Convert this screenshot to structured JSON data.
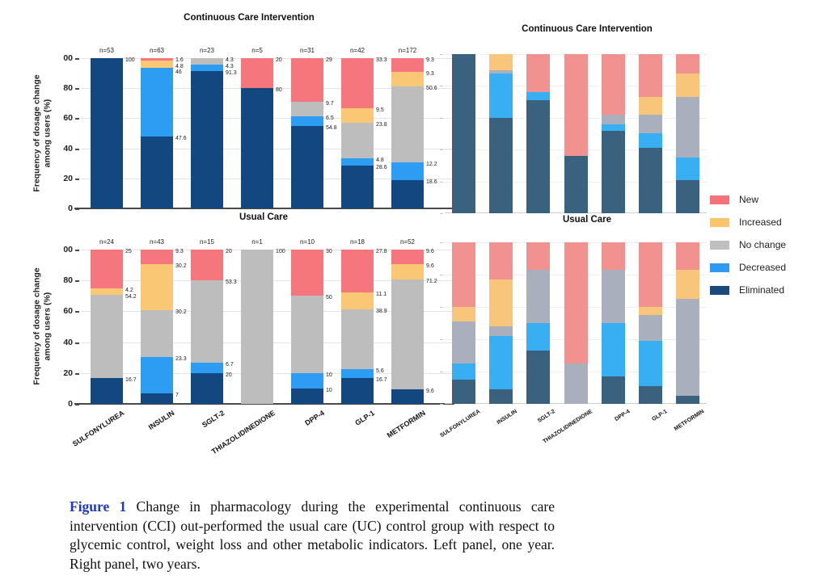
{
  "caption": {
    "label": "Figure 1",
    "text": " Change in pharmacology during the experimental continuous care intervention (CCI) out-performed the usual care (UC) control group with respect to glycemic control, weight loss and other metabolic indicators. Left panel, one year. Right panel, two years."
  },
  "legend": {
    "items": [
      {
        "key": "new",
        "label": "New",
        "color": "#F4737A"
      },
      {
        "key": "increased",
        "label": "Increased",
        "color": "#FAC46D"
      },
      {
        "key": "no_change",
        "label": "No change",
        "color": "#BFBFBF"
      },
      {
        "key": "decreased",
        "label": "Decreased",
        "color": "#2E9BF0"
      },
      {
        "key": "eliminated",
        "label": "Eliminated",
        "color": "#1C4A7E"
      }
    ]
  },
  "colors": {
    "left": {
      "new": "#F5767C",
      "increased": "#FAC775",
      "no_change": "#BDBDBE",
      "decreased": "#2D9CF3",
      "eliminated": "#12477F"
    },
    "right": {
      "new": "#F19190",
      "increased": "#F8C57B",
      "no_change": "#A9AFBC",
      "decreased": "#38AFF3",
      "eliminated": "#3A627E"
    }
  },
  "chart_data": {
    "type": "bar",
    "stacked": true,
    "unit": "percent",
    "ylabel": "Frequency of dosage change among users (%)",
    "yticks": {
      "labels": [
        "00",
        "80",
        "60",
        "40",
        "20",
        "0"
      ],
      "values": [
        100,
        80,
        60,
        40,
        20,
        0
      ]
    },
    "categories": [
      "SULFONYLUREA",
      "INSULIN",
      "SGLT-2",
      "THIAZOLIDINEDIONE",
      "DPP-4",
      "GLP-1",
      "METFORMIN"
    ],
    "segment_order_top_to_bottom": [
      "new",
      "increased",
      "no_change",
      "decreased",
      "eliminated"
    ],
    "panels": [
      {
        "id": "cci1",
        "title": "Continuous Care Intervention",
        "timepoint": "one year",
        "bars": [
          {
            "category": "SULFONYLUREA",
            "n": "n=53",
            "segments": [
              {
                "key": "eliminated",
                "value": 100,
                "label": "100"
              }
            ]
          },
          {
            "category": "INSULIN",
            "n": "n=63",
            "segments": [
              {
                "key": "new",
                "value": 1.6,
                "label": "1.6"
              },
              {
                "key": "increased",
                "value": 4.8,
                "label": "4.8"
              },
              {
                "key": "decreased",
                "value": 46,
                "label": "46"
              },
              {
                "key": "eliminated",
                "value": 47.6,
                "label": "47.6"
              }
            ]
          },
          {
            "category": "SGLT-2",
            "n": "n=23",
            "segments": [
              {
                "key": "no_change",
                "value": 4.3,
                "label": "4.3"
              },
              {
                "key": "decreased",
                "value": 4.3,
                "label": "4.3"
              },
              {
                "key": "eliminated",
                "value": 91.3,
                "label": "91.3"
              }
            ]
          },
          {
            "category": "THIAZOLIDINEDIONE",
            "n": "n=5",
            "segments": [
              {
                "key": "new",
                "value": 20,
                "label": "20"
              },
              {
                "key": "eliminated",
                "value": 80,
                "label": "80"
              }
            ]
          },
          {
            "category": "DPP-4",
            "n": "n=31",
            "segments": [
              {
                "key": "new",
                "value": 29,
                "label": "29"
              },
              {
                "key": "no_change",
                "value": 9.7,
                "label": "9.7"
              },
              {
                "key": "decreased",
                "value": 6.5,
                "label": "6.5"
              },
              {
                "key": "eliminated",
                "value": 54.8,
                "label": "54.8"
              }
            ]
          },
          {
            "category": "GLP-1",
            "n": "n=42",
            "segments": [
              {
                "key": "new",
                "value": 33.3,
                "label": "33.3"
              },
              {
                "key": "increased",
                "value": 9.5,
                "label": "9.5"
              },
              {
                "key": "no_change",
                "value": 23.8,
                "label": "23.8"
              },
              {
                "key": "decreased",
                "value": 4.8,
                "label": "4.8"
              },
              {
                "key": "eliminated",
                "value": 28.6,
                "label": "28.6"
              }
            ]
          },
          {
            "category": "METFORMIN",
            "n": "n=172",
            "segments": [
              {
                "key": "new",
                "value": 9.3,
                "label": "9.3"
              },
              {
                "key": "increased",
                "value": 9.3,
                "label": "9.3"
              },
              {
                "key": "no_change",
                "value": 50.6,
                "label": "50.6"
              },
              {
                "key": "decreased",
                "value": 12.2,
                "label": "12.2"
              },
              {
                "key": "eliminated",
                "value": 18.6,
                "label": "18.6"
              }
            ]
          }
        ]
      },
      {
        "id": "uc1",
        "title": "Usual Care",
        "timepoint": "one year",
        "bars": [
          {
            "category": "SULFONYLUREA",
            "n": "n=24",
            "segments": [
              {
                "key": "new",
                "value": 25,
                "label": "25"
              },
              {
                "key": "increased",
                "value": 4.2,
                "label": "4.2"
              },
              {
                "key": "no_change",
                "value": 54.2,
                "label": "54.2"
              },
              {
                "key": "eliminated",
                "value": 16.7,
                "label": "16.7"
              }
            ]
          },
          {
            "category": "INSULIN",
            "n": "n=43",
            "segments": [
              {
                "key": "new",
                "value": 9.3,
                "label": "9.3"
              },
              {
                "key": "increased",
                "value": 30.2,
                "label": "30.2"
              },
              {
                "key": "no_change",
                "value": 30.2,
                "label": "30.2"
              },
              {
                "key": "decreased",
                "value": 23.3,
                "label": "23.3"
              },
              {
                "key": "eliminated",
                "value": 7,
                "label": "7"
              }
            ]
          },
          {
            "category": "SGLT-2",
            "n": "n=15",
            "segments": [
              {
                "key": "new",
                "value": 20,
                "label": "20"
              },
              {
                "key": "no_change",
                "value": 53.3,
                "label": "53.3"
              },
              {
                "key": "decreased",
                "value": 6.7,
                "label": "6.7"
              },
              {
                "key": "eliminated",
                "value": 20,
                "label": "20"
              }
            ]
          },
          {
            "category": "THIAZOLIDINEDIONE",
            "n": "n=1",
            "segments": [
              {
                "key": "no_change",
                "value": 100,
                "label": "100"
              }
            ]
          },
          {
            "category": "DPP-4",
            "n": "n=10",
            "segments": [
              {
                "key": "new",
                "value": 30,
                "label": "30"
              },
              {
                "key": "no_change",
                "value": 50,
                "label": "50"
              },
              {
                "key": "decreased",
                "value": 10,
                "label": "10"
              },
              {
                "key": "eliminated",
                "value": 10,
                "label": "10"
              }
            ]
          },
          {
            "category": "GLP-1",
            "n": "n=18",
            "segments": [
              {
                "key": "new",
                "value": 27.8,
                "label": "27.8"
              },
              {
                "key": "increased",
                "value": 11.1,
                "label": "11.1"
              },
              {
                "key": "no_change",
                "value": 38.9,
                "label": "38.9"
              },
              {
                "key": "decreased",
                "value": 5.6,
                "label": "5.6"
              },
              {
                "key": "eliminated",
                "value": 16.7,
                "label": "16.7"
              }
            ]
          },
          {
            "category": "METFORMIN",
            "n": "n=52",
            "segments": [
              {
                "key": "new",
                "value": 9.6,
                "label": "9.6"
              },
              {
                "key": "increased",
                "value": 9.6,
                "label": "9.6"
              },
              {
                "key": "no_change",
                "value": 71.2,
                "label": "71.2"
              },
              {
                "key": "eliminated",
                "value": 9.6,
                "label": "9.6"
              }
            ]
          }
        ]
      },
      {
        "id": "cci2",
        "title": "Continuous Care Intervention",
        "timepoint": "two years",
        "values_estimated": true,
        "bars": [
          {
            "category": "SULFONYLUREA",
            "segments": [
              {
                "key": "eliminated",
                "value": 100
              }
            ]
          },
          {
            "category": "INSULIN",
            "segments": [
              {
                "key": "increased",
                "value": 10
              },
              {
                "key": "no_change",
                "value": 2
              },
              {
                "key": "decreased",
                "value": 28
              },
              {
                "key": "eliminated",
                "value": 60
              }
            ]
          },
          {
            "category": "SGLT-2",
            "segments": [
              {
                "key": "new",
                "value": 24
              },
              {
                "key": "decreased",
                "value": 5
              },
              {
                "key": "eliminated",
                "value": 71
              }
            ]
          },
          {
            "category": "THIAZOLIDINEDIONE",
            "segments": [
              {
                "key": "new",
                "value": 64
              },
              {
                "key": "eliminated",
                "value": 36
              }
            ]
          },
          {
            "category": "DPP-4",
            "segments": [
              {
                "key": "new",
                "value": 38
              },
              {
                "key": "no_change",
                "value": 6
              },
              {
                "key": "decreased",
                "value": 4
              },
              {
                "key": "eliminated",
                "value": 52
              }
            ]
          },
          {
            "category": "GLP-1",
            "segments": [
              {
                "key": "new",
                "value": 27
              },
              {
                "key": "increased",
                "value": 11
              },
              {
                "key": "no_change",
                "value": 12
              },
              {
                "key": "decreased",
                "value": 9
              },
              {
                "key": "eliminated",
                "value": 41
              }
            ]
          },
          {
            "category": "METFORMIN",
            "segments": [
              {
                "key": "new",
                "value": 12
              },
              {
                "key": "increased",
                "value": 15
              },
              {
                "key": "no_change",
                "value": 38
              },
              {
                "key": "decreased",
                "value": 14
              },
              {
                "key": "eliminated",
                "value": 21
              }
            ]
          }
        ]
      },
      {
        "id": "uc2",
        "title": "Usual Care",
        "timepoint": "two years",
        "values_estimated": true,
        "bars": [
          {
            "category": "SULFONYLUREA",
            "segments": [
              {
                "key": "new",
                "value": 40
              },
              {
                "key": "increased",
                "value": 9
              },
              {
                "key": "no_change",
                "value": 26
              },
              {
                "key": "decreased",
                "value": 10
              },
              {
                "key": "eliminated",
                "value": 15
              }
            ]
          },
          {
            "category": "INSULIN",
            "segments": [
              {
                "key": "new",
                "value": 23
              },
              {
                "key": "increased",
                "value": 29
              },
              {
                "key": "no_change",
                "value": 6
              },
              {
                "key": "decreased",
                "value": 33
              },
              {
                "key": "eliminated",
                "value": 9
              }
            ]
          },
          {
            "category": "SGLT-2",
            "segments": [
              {
                "key": "new",
                "value": 17
              },
              {
                "key": "no_change",
                "value": 33
              },
              {
                "key": "decreased",
                "value": 17
              },
              {
                "key": "eliminated",
                "value": 33
              }
            ]
          },
          {
            "category": "THIAZOLIDINEDIONE",
            "segments": [
              {
                "key": "new",
                "value": 75
              },
              {
                "key": "no_change",
                "value": 25
              }
            ]
          },
          {
            "category": "DPP-4",
            "segments": [
              {
                "key": "new",
                "value": 17
              },
              {
                "key": "no_change",
                "value": 33
              },
              {
                "key": "decreased",
                "value": 33
              },
              {
                "key": "eliminated",
                "value": 17
              }
            ]
          },
          {
            "category": "GLP-1",
            "segments": [
              {
                "key": "new",
                "value": 40
              },
              {
                "key": "increased",
                "value": 5
              },
              {
                "key": "no_change",
                "value": 16
              },
              {
                "key": "decreased",
                "value": 28
              },
              {
                "key": "eliminated",
                "value": 11
              }
            ]
          },
          {
            "category": "METFORMIN",
            "segments": [
              {
                "key": "new",
                "value": 17
              },
              {
                "key": "increased",
                "value": 18
              },
              {
                "key": "no_change",
                "value": 60
              },
              {
                "key": "eliminated",
                "value": 5
              }
            ]
          }
        ]
      }
    ]
  }
}
